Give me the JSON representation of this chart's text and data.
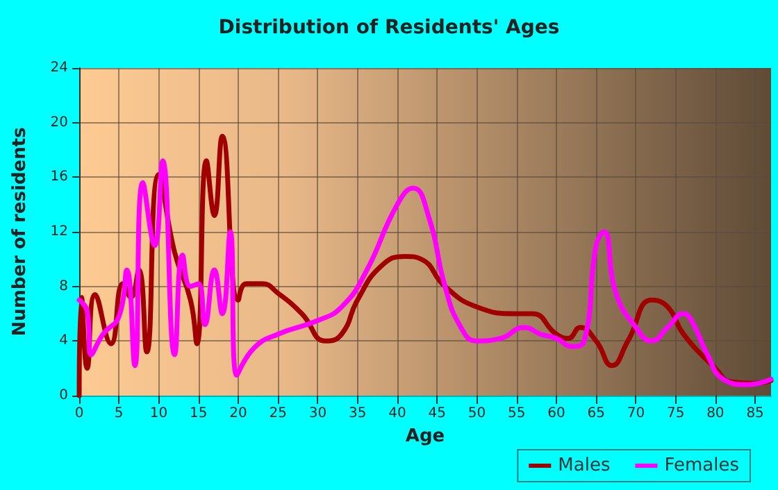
{
  "chart_data": {
    "type": "line",
    "title": "Distribution of Residents' Ages",
    "xlabel": "Age",
    "ylabel": "Number of residents",
    "xlim": [
      0,
      87
    ],
    "xticks": [
      0,
      5,
      10,
      15,
      20,
      25,
      30,
      35,
      40,
      45,
      50,
      55,
      60,
      65,
      70,
      75,
      80,
      85
    ],
    "ylim": [
      0,
      24
    ],
    "yticks": [
      0,
      4,
      8,
      12,
      16,
      20,
      24
    ],
    "grid": true,
    "legend": "bottom right",
    "marker": "none",
    "line_style": "solid",
    "series": [
      {
        "name": "Males",
        "color": "#a00000",
        "x": [
          0,
          0.3,
          1,
          2,
          4,
          5.5,
          6.5,
          7.5,
          8.5,
          10,
          12,
          14,
          14.8,
          16,
          17,
          18,
          20,
          21,
          23,
          25,
          28,
          31,
          33,
          35,
          38,
          41,
          43,
          46,
          50,
          55,
          57,
          60,
          61.5,
          63,
          65,
          67,
          69,
          72,
          74,
          76,
          80,
          82,
          85,
          87
        ],
        "values": [
          0,
          7.2,
          2,
          7.4,
          3.8,
          8.2,
          7.2,
          9.2,
          3.2,
          16.2,
          10.5,
          7,
          3.8,
          17.2,
          13.2,
          19,
          7,
          8.2,
          8.2,
          7.5,
          6,
          4,
          4.5,
          7,
          9.5,
          10.2,
          10,
          8,
          6.5,
          6,
          6,
          4.5,
          4.2,
          5,
          4,
          2.2,
          4,
          7,
          6.5,
          4.5,
          2,
          1,
          0.9,
          1.1
        ]
      },
      {
        "name": "Females",
        "color": "#ff00ff",
        "x": [
          0,
          1,
          1.5,
          3,
          5,
          6,
          7,
          8,
          9.5,
          10.5,
          12,
          13,
          14,
          15,
          15.8,
          17,
          18,
          19,
          19.8,
          22,
          25,
          30,
          33,
          36,
          40,
          42,
          44,
          46,
          48,
          50,
          53,
          56,
          58,
          60,
          62,
          63.5,
          65,
          66,
          67.5,
          70,
          72,
          74,
          76,
          77,
          79,
          81,
          84,
          87
        ],
        "values": [
          7,
          6.2,
          3,
          4.5,
          5.8,
          9.2,
          2.2,
          15.6,
          11,
          17.2,
          3,
          10.3,
          8,
          8.2,
          5.2,
          9.2,
          6,
          12,
          1.5,
          3.5,
          4.5,
          5.5,
          6.5,
          9,
          14,
          15.2,
          13,
          8,
          5,
          4,
          4.2,
          5,
          4.5,
          4.2,
          3.6,
          4,
          11,
          12,
          7.5,
          5,
          4,
          5,
          6,
          5.5,
          3,
          1.2,
          0.8,
          1.2
        ]
      }
    ]
  }
}
